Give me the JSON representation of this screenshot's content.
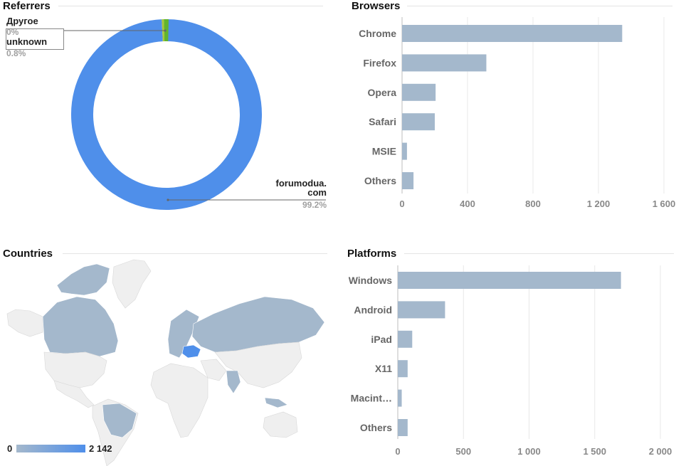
{
  "panels": {
    "referrers": {
      "title": "Referrers"
    },
    "browsers": {
      "title": "Browsers"
    },
    "countries": {
      "title": "Countries"
    },
    "platforms": {
      "title": "Platforms"
    }
  },
  "colors": {
    "bar": "#a4b8cc",
    "donut_main": "#4f8fea",
    "donut_other": "#aac83a",
    "donut_unknown": "#62b42d",
    "map_land": "#efefef",
    "map_low": "#a4b8cc",
    "map_high": "#4f8fea",
    "grid": "#e8e8e8"
  },
  "chart_data": [
    {
      "id": "referrers",
      "type": "pie",
      "title": "Referrers",
      "donut": true,
      "slices": [
        {
          "label": "forumodua.com",
          "label_lines": [
            "forumodua.",
            "com"
          ],
          "value": 99.2,
          "value_label": "99.2%",
          "color": "#4f8fea"
        },
        {
          "label": "Другое",
          "value": 0,
          "value_label": "0%",
          "color": "#aac83a"
        },
        {
          "label": "unknown",
          "value": 0.8,
          "value_label": "0.8%",
          "color": "#62b42d"
        }
      ]
    },
    {
      "id": "browsers",
      "type": "bar",
      "orientation": "horizontal",
      "title": "Browsers",
      "categories": [
        "Chrome",
        "Firefox",
        "Opera",
        "Safari",
        "MSIE",
        "Others"
      ],
      "values": [
        1345,
        515,
        205,
        200,
        30,
        70
      ],
      "xlim": [
        0,
        1600
      ],
      "ticks": [
        0,
        400,
        800,
        1200,
        1600
      ],
      "tick_labels": [
        "0",
        "400",
        "800",
        "1 200",
        "1 600"
      ],
      "grid": true
    },
    {
      "id": "countries",
      "type": "heatmap",
      "title": "Countries",
      "legend_min_label": "0",
      "legend_max_label": "2 142",
      "max_value": 2142,
      "highlighted_region": "Ukraine"
    },
    {
      "id": "platforms",
      "type": "bar",
      "orientation": "horizontal",
      "title": "Platforms",
      "categories": [
        "Windows",
        "Android",
        "iPad",
        "X11",
        "Macint…",
        "Others"
      ],
      "values": [
        1700,
        360,
        110,
        75,
        30,
        75
      ],
      "xlim": [
        0,
        2000
      ],
      "ticks": [
        0,
        500,
        1000,
        1500,
        2000
      ],
      "tick_labels": [
        "0",
        "500",
        "1 000",
        "1 500",
        "2 000"
      ],
      "grid": true
    }
  ]
}
